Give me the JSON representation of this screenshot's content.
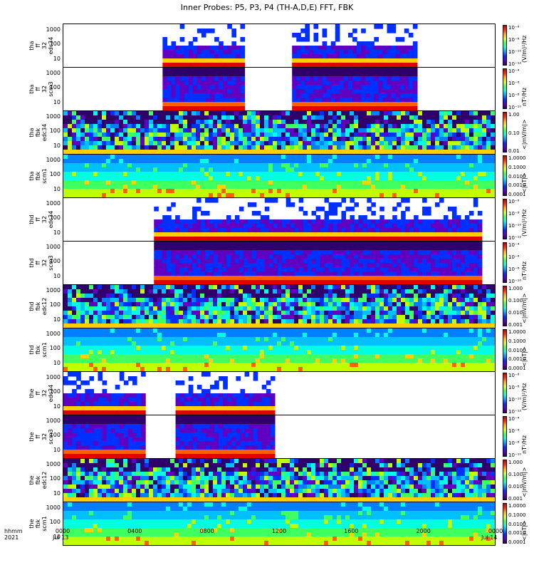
{
  "title": "Inner Probes: P5, P3, P4 (TH-A,D,E) FFT, FBK",
  "corner": [
    "hhmm",
    "2021"
  ],
  "x_ticks": [
    "0000",
    "0400",
    "0800",
    "1200",
    "1600",
    "2000",
    "0000"
  ],
  "x_dates": {
    "start": "Jul 13",
    "end": "Jul 14"
  },
  "colors": {
    "low": "#30006a",
    "mid": "#00c0ff",
    "high": "#c00000"
  },
  "panels": [
    {
      "label": [
        "tha",
        "ff",
        "32",
        "edc34"
      ],
      "unit": "(V/m)²/Hz",
      "ctick": [
        "10⁻⁶",
        "10⁻⁸",
        "10⁻¹⁰",
        "10⁻¹²"
      ],
      "yticks": [
        "1000",
        "100",
        "10"
      ],
      "kind": "fft-e",
      "spans": [
        [
          0.23,
          0.42
        ],
        [
          0.53,
          0.82
        ]
      ]
    },
    {
      "label": [
        "tha",
        "ff",
        "32",
        "scm3"
      ],
      "unit": "nT²/Hz",
      "ctick": [
        "10⁻⁴",
        "10⁻⁶",
        "10⁻⁸",
        "10⁻¹⁰"
      ],
      "yticks": [
        "1000",
        "100",
        "10"
      ],
      "kind": "fft-b",
      "spans": [
        [
          0.23,
          0.42
        ],
        [
          0.53,
          0.82
        ]
      ]
    },
    {
      "label": [
        "tha",
        "fbk",
        "edc34"
      ],
      "unit": "<|mV/m|>",
      "ctick": [
        "1.00",
        "0.10",
        "0.01"
      ],
      "yticks": [
        "1000",
        "100",
        "10"
      ],
      "kind": "fbk-e",
      "spans": [
        [
          0,
          1
        ]
      ]
    },
    {
      "label": [
        "tha",
        "fbk",
        "scm1"
      ],
      "unit": "<|nT|>",
      "ctick": [
        "1.0000",
        "0.1000",
        "0.0100",
        "0.0010",
        "0.0001"
      ],
      "yticks": [
        "1000",
        "100",
        "10"
      ],
      "kind": "fbk-b",
      "spans": [
        [
          0,
          1
        ]
      ]
    },
    {
      "label": [
        "thd",
        "ff",
        "32",
        "edc34"
      ],
      "unit": "(V/m)²/Hz",
      "ctick": [
        "10⁻⁶",
        "10⁻⁸",
        "10⁻¹⁰",
        "10⁻¹²"
      ],
      "yticks": [
        "1000",
        "100",
        "10"
      ],
      "kind": "fft-e",
      "spans": [
        [
          0.21,
          0.97
        ]
      ]
    },
    {
      "label": [
        "thd",
        "ff",
        "32",
        "scm3"
      ],
      "unit": "nT²/Hz",
      "ctick": [
        "10⁻⁴",
        "10⁻⁶",
        "10⁻⁸",
        "10⁻¹⁰"
      ],
      "yticks": [
        "1000",
        "100",
        "10"
      ],
      "kind": "fft-b",
      "spans": [
        [
          0.21,
          0.97
        ]
      ]
    },
    {
      "label": [
        "thd",
        "fbk",
        "edc12"
      ],
      "unit": "<|mV/m|>",
      "ctick": [
        "1.000",
        "0.100",
        "0.010",
        "0.001"
      ],
      "yticks": [
        "1000",
        "100",
        "10"
      ],
      "kind": "fbk-e",
      "spans": [
        [
          0,
          1
        ]
      ]
    },
    {
      "label": [
        "thd",
        "fbk",
        "scm1"
      ],
      "unit": "<|nT|>",
      "ctick": [
        "1.0000",
        "0.1000",
        "0.0100",
        "0.0010",
        "0.0001"
      ],
      "yticks": [
        "1000",
        "100",
        "10"
      ],
      "kind": "fbk-b",
      "spans": [
        [
          0,
          1
        ]
      ]
    },
    {
      "label": [
        "the",
        "ff",
        "32",
        "edc34"
      ],
      "unit": "(V/m)²/Hz",
      "ctick": [
        "10⁻⁶",
        "10⁻⁸",
        "10⁻¹⁰",
        "10⁻¹²"
      ],
      "yticks": [
        "1000",
        "100",
        "10"
      ],
      "kind": "fft-e",
      "spans": [
        [
          0,
          0.19
        ],
        [
          0.26,
          0.49
        ]
      ]
    },
    {
      "label": [
        "the",
        "ff",
        "32",
        "scm3"
      ],
      "unit": "nT²/Hz",
      "ctick": [
        "10⁻⁴",
        "10⁻⁶",
        "10⁻⁸",
        "10⁻¹⁰"
      ],
      "yticks": [
        "1000",
        "100",
        "10"
      ],
      "kind": "fft-b",
      "spans": [
        [
          0,
          0.19
        ],
        [
          0.26,
          0.49
        ]
      ]
    },
    {
      "label": [
        "the",
        "fbk",
        "edc12"
      ],
      "unit": "<|mV/m|>",
      "ctick": [
        "1.000",
        "0.100",
        "0.010",
        "0.001"
      ],
      "yticks": [
        "1000",
        "100",
        "10"
      ],
      "kind": "fbk-e",
      "spans": [
        [
          0,
          1
        ]
      ]
    },
    {
      "label": [
        "the",
        "fbk",
        "scm1"
      ],
      "unit": "<|nT|>",
      "ctick": [
        "1.0000",
        "0.1000",
        "0.0100",
        "0.0010",
        "0.0001"
      ],
      "yticks": [
        "1000",
        "100",
        "10"
      ],
      "kind": "fbk-b",
      "spans": [
        [
          0,
          1
        ]
      ]
    }
  ],
  "chart_data": {
    "type": "heatmap",
    "title": "Inner Probes: P5, P3, P4 (TH-A,D,E) FFT, FBK",
    "x_range": [
      "2021-07-13 00:00",
      "2021-07-14 00:00"
    ],
    "y_scale": "log",
    "y_ticks": [
      10,
      100,
      1000
    ],
    "coverage_hours": {
      "tha_fft": [
        [
          5.5,
          10.0
        ],
        [
          12.7,
          19.7
        ]
      ],
      "thd_fft": [
        [
          5.0,
          23.2
        ]
      ],
      "the_fft": [
        [
          0.0,
          4.5
        ],
        [
          6.2,
          11.7
        ]
      ]
    }
  }
}
